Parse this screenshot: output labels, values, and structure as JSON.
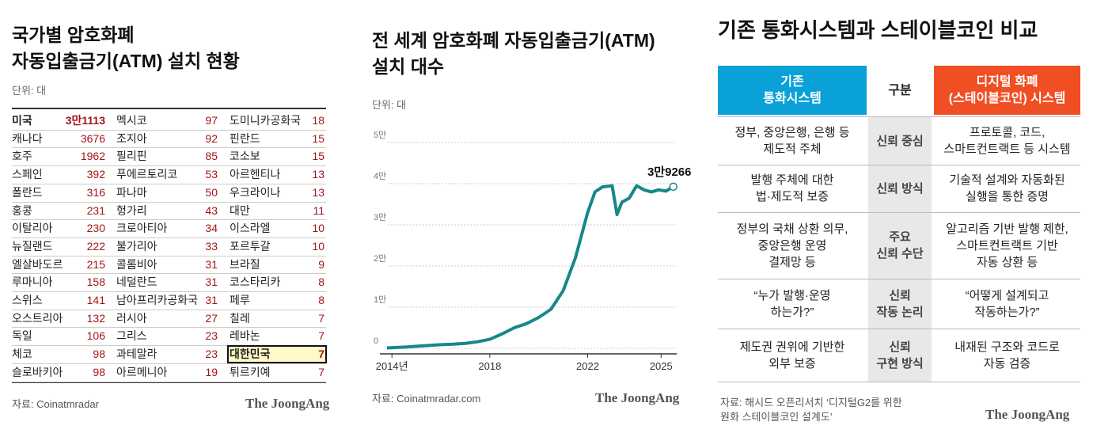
{
  "left": {
    "title": "국가별 암호화폐\n자동입출금기(ATM) 설치 현황",
    "unit": "단위: 대",
    "highlight": "대한민국",
    "columns": [
      [
        [
          "미국",
          "3만1113"
        ],
        [
          "캐나다",
          3676
        ],
        [
          "호주",
          1962
        ],
        [
          "스페인",
          392
        ],
        [
          "폴란드",
          316
        ],
        [
          "홍콩",
          231
        ],
        [
          "이탈리아",
          230
        ],
        [
          "뉴질랜드",
          222
        ],
        [
          "엘살바도르",
          215
        ],
        [
          "루마니아",
          158
        ],
        [
          "스위스",
          141
        ],
        [
          "오스트리아",
          132
        ],
        [
          "독일",
          106
        ],
        [
          "체코",
          98
        ],
        [
          "슬로바키아",
          98
        ]
      ],
      [
        [
          "멕시코",
          97
        ],
        [
          "조지아",
          92
        ],
        [
          "필리핀",
          85
        ],
        [
          "푸에르토리코",
          53
        ],
        [
          "파나마",
          50
        ],
        [
          "헝가리",
          43
        ],
        [
          "크로아티아",
          34
        ],
        [
          "불가리아",
          33
        ],
        [
          "콜롬비아",
          31
        ],
        [
          "네덜란드",
          31
        ],
        [
          "남아프리카공화국",
          31
        ],
        [
          "러시아",
          27
        ],
        [
          "그리스",
          23
        ],
        [
          "과테말라",
          23
        ],
        [
          "아르메니아",
          19
        ]
      ],
      [
        [
          "도미니카공화국",
          18
        ],
        [
          "핀란드",
          15
        ],
        [
          "코소보",
          15
        ],
        [
          "아르헨티나",
          13
        ],
        [
          "우크라이나",
          13
        ],
        [
          "대만",
          11
        ],
        [
          "이스라엘",
          10
        ],
        [
          "포르투갈",
          10
        ],
        [
          "브라질",
          9
        ],
        [
          "코스타리카",
          8
        ],
        [
          "페루",
          8
        ],
        [
          "칠레",
          7
        ],
        [
          "레바논",
          7
        ],
        [
          "대한민국",
          7
        ],
        [
          "튀르키예",
          7
        ]
      ]
    ],
    "source": "자료: Coinatmradar",
    "logo": "The JoongAng"
  },
  "chart_data": {
    "type": "line",
    "title": "전 세계 암호화폐 자동입출금기(ATM)\n설치 대수",
    "unit": "단위: 대",
    "x": [
      2013.8,
      2014.5,
      2015,
      2015.5,
      2016,
      2016.5,
      2017,
      2017.5,
      2018,
      2018.5,
      2019,
      2019.5,
      2020,
      2020.5,
      2021,
      2021.5,
      2022,
      2022.3,
      2022.6,
      2023,
      2023.2,
      2023.4,
      2023.7,
      2024,
      2024.3,
      2024.6,
      2024.9,
      2025.2,
      2025.5
    ],
    "series": [
      {
        "name": "ATM",
        "color": "#17878a",
        "values": [
          100,
          300,
          500,
          700,
          900,
          1000,
          1200,
          1600,
          2200,
          3500,
          5000,
          6000,
          7500,
          9500,
          14000,
          22000,
          33000,
          38000,
          39200,
          39500,
          32500,
          35500,
          36500,
          39500,
          38500,
          38000,
          38500,
          38200,
          39266
        ],
        "value_labels": [
          null,
          null,
          null,
          null,
          null,
          null,
          null,
          null,
          null,
          null,
          null,
          null,
          null,
          null,
          null,
          null,
          null,
          null,
          null,
          null,
          null,
          null,
          null,
          null,
          null,
          null,
          null,
          null,
          "3만9266"
        ]
      }
    ],
    "xlim": [
      2013.8,
      2025.8
    ],
    "xticks": [
      {
        "value": 2014,
        "label": "2014년"
      },
      2018,
      2022,
      2025
    ],
    "ylim": [
      0,
      50000
    ],
    "yticks": [
      0,
      {
        "value": 10000,
        "label": "1만"
      },
      {
        "value": 20000,
        "label": "2만"
      },
      {
        "value": 30000,
        "label": "3만"
      },
      {
        "value": 40000,
        "label": "4만"
      },
      {
        "value": 50000,
        "label": "5만"
      }
    ],
    "grid": true,
    "source": "자료: Coinatmradar.com",
    "logo": "The JoongAng"
  },
  "right": {
    "title": "기존 통화시스템과 스테이블코인 비교",
    "header": [
      "기존\n통화시스템",
      "구분",
      "디지털 화폐\n(스테이블코인) 시스템"
    ],
    "rows": [
      [
        "정부, 중앙은행, 은행 등\n제도적 주체",
        "신뢰 중심",
        "프로토콜, 코드,\n스마트컨트랙트 등 시스템"
      ],
      [
        "발행 주체에 대한\n법·제도적 보증",
        "신뢰 방식",
        "기술적 설계와 자동화된\n실행을 통한 증명"
      ],
      [
        "정부의 국채 상환 의무,\n중앙은행 운영\n결제망 등",
        "주요\n신뢰 수단",
        "알고리즘 기반 발행 제한,\n스마트컨트랙트 기반\n자동 상환 등"
      ],
      [
        "“누가 발행·운영\n하는가?”",
        "신뢰\n작동 논리",
        "“어떻게 설계되고\n작동하는가?”"
      ],
      [
        "제도권 권위에 기반한\n외부 보증",
        "신뢰\n구현 방식",
        "내재된 구조와 코드로\n자동 검증"
      ]
    ],
    "source": "자료: 해시드 오픈리서치 ‘디지털G2를 위한\n원화 스테이블코인 설계도’",
    "logo": "The JoongAng"
  }
}
